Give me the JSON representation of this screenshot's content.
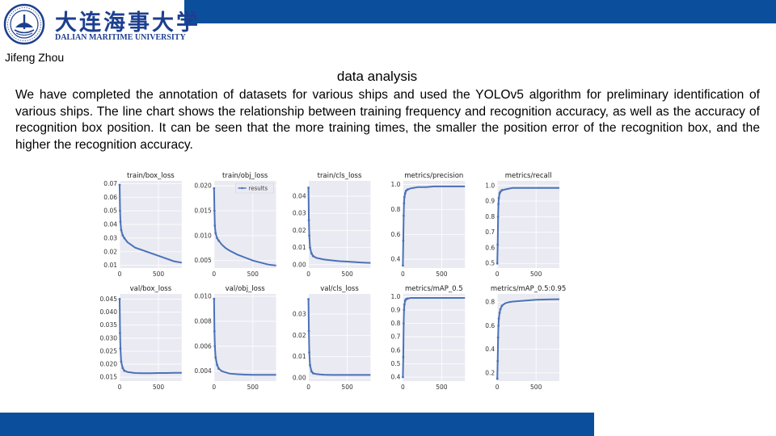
{
  "header": {
    "logo_cn": "大连海事大学",
    "logo_en": "DALIAN MARITIME UNIVERSITY"
  },
  "author": "Jifeng Zhou",
  "title": "data analysis",
  "body_text": "We have completed the annotation of datasets for various ships and used the YOLOv5 algorithm for preliminary identification of various ships. The line chart shows the relationship between training frequency and recognition accuracy, as well as the accuracy of recognition box position. It can be seen that the more training times, the smaller the position error of the recognition box, and the higher the recognition accuracy.",
  "colors": {
    "bar": "#0b4f9c",
    "logo": "#1d3f8f",
    "series": "#4a72b8",
    "panel_bg": "#eaeaf2"
  },
  "chart_data": [
    {
      "type": "line",
      "title": "train/box_loss",
      "legend": "",
      "xlim": [
        0,
        800
      ],
      "xticks": [
        0,
        500
      ],
      "ylim": [
        0.008,
        0.072
      ],
      "yticks": [
        0.01,
        0.02,
        0.03,
        0.04,
        0.05,
        0.06,
        0.07
      ],
      "ytick_labels": [
        "0.01",
        "0.02",
        "0.03",
        "0.04",
        "0.05",
        "0.06",
        "0.07"
      ],
      "x": [
        0,
        5,
        10,
        20,
        40,
        60,
        100,
        150,
        200,
        300,
        400,
        500,
        600,
        700,
        800
      ],
      "y": [
        0.069,
        0.05,
        0.042,
        0.036,
        0.032,
        0.03,
        0.027,
        0.025,
        0.023,
        0.021,
        0.019,
        0.017,
        0.015,
        0.013,
        0.012
      ]
    },
    {
      "type": "line",
      "title": "train/obj_loss",
      "legend": "results",
      "xlim": [
        0,
        800
      ],
      "xticks": [
        0,
        500
      ],
      "ylim": [
        0.0035,
        0.021
      ],
      "yticks": [
        0.005,
        0.01,
        0.015,
        0.02
      ],
      "ytick_labels": [
        "0.005",
        "0.010",
        "0.015",
        "0.020"
      ],
      "x": [
        0,
        5,
        10,
        20,
        40,
        60,
        100,
        150,
        200,
        300,
        400,
        500,
        600,
        700,
        800
      ],
      "y": [
        0.0195,
        0.015,
        0.012,
        0.0105,
        0.0095,
        0.009,
        0.0082,
        0.0075,
        0.007,
        0.0062,
        0.0056,
        0.005,
        0.0046,
        0.0042,
        0.004
      ]
    },
    {
      "type": "line",
      "title": "train/cls_loss",
      "legend": "",
      "xlim": [
        0,
        800
      ],
      "xticks": [
        0,
        500
      ],
      "ylim": [
        -0.002,
        0.049
      ],
      "yticks": [
        0.0,
        0.01,
        0.02,
        0.03,
        0.04
      ],
      "ytick_labels": [
        "0.00",
        "0.01",
        "0.02",
        "0.03",
        "0.04"
      ],
      "x": [
        0,
        5,
        10,
        20,
        40,
        60,
        100,
        150,
        200,
        300,
        400,
        500,
        600,
        700,
        800
      ],
      "y": [
        0.045,
        0.026,
        0.017,
        0.01,
        0.0065,
        0.005,
        0.004,
        0.0035,
        0.003,
        0.0025,
        0.002,
        0.0018,
        0.0015,
        0.0012,
        0.001
      ]
    },
    {
      "type": "line",
      "title": "metrics/precision",
      "legend": "",
      "xlim": [
        0,
        800
      ],
      "xticks": [
        0,
        500
      ],
      "ylim": [
        0.33,
        1.03
      ],
      "yticks": [
        0.4,
        0.6,
        0.8,
        1.0
      ],
      "ytick_labels": [
        "0.4",
        "0.6",
        "0.8",
        "1.0"
      ],
      "x": [
        0,
        5,
        10,
        15,
        20,
        30,
        40,
        60,
        100,
        150,
        200,
        300,
        400,
        500,
        600,
        700,
        800
      ],
      "y": [
        0.35,
        0.55,
        0.75,
        0.85,
        0.9,
        0.93,
        0.95,
        0.96,
        0.97,
        0.975,
        0.98,
        0.98,
        0.985,
        0.985,
        0.985,
        0.985,
        0.985
      ]
    },
    {
      "type": "line",
      "title": "metrics/recall",
      "legend": "",
      "xlim": [
        0,
        800
      ],
      "xticks": [
        0,
        500
      ],
      "ylim": [
        0.47,
        1.03
      ],
      "yticks": [
        0.5,
        0.6,
        0.7,
        0.8,
        0.9,
        1.0
      ],
      "ytick_labels": [
        "0.5",
        "0.6",
        "0.7",
        "0.8",
        "0.9",
        "1.0"
      ],
      "x": [
        0,
        5,
        10,
        15,
        20,
        30,
        40,
        60,
        100,
        150,
        200,
        300,
        400,
        500,
        600,
        700,
        800
      ],
      "y": [
        0.5,
        0.62,
        0.8,
        0.88,
        0.92,
        0.95,
        0.96,
        0.97,
        0.975,
        0.98,
        0.985,
        0.985,
        0.985,
        0.985,
        0.985,
        0.985,
        0.985
      ]
    },
    {
      "type": "line",
      "title": "val/box_loss",
      "legend": "",
      "xlim": [
        0,
        800
      ],
      "xticks": [
        0,
        500
      ],
      "ylim": [
        0.0135,
        0.047
      ],
      "yticks": [
        0.015,
        0.02,
        0.025,
        0.03,
        0.035,
        0.04,
        0.045
      ],
      "ytick_labels": [
        "0.015",
        "0.020",
        "0.025",
        "0.030",
        "0.035",
        "0.040",
        "0.045"
      ],
      "x": [
        0,
        5,
        10,
        20,
        40,
        60,
        100,
        150,
        200,
        300,
        400,
        500,
        600,
        700,
        800
      ],
      "y": [
        0.045,
        0.032,
        0.026,
        0.021,
        0.0185,
        0.0175,
        0.017,
        0.0168,
        0.0166,
        0.0165,
        0.0165,
        0.0166,
        0.0166,
        0.0167,
        0.0167
      ]
    },
    {
      "type": "line",
      "title": "val/obj_loss",
      "legend": "",
      "xlim": [
        0,
        800
      ],
      "xticks": [
        0,
        500
      ],
      "ylim": [
        0.0032,
        0.0102
      ],
      "yticks": [
        0.004,
        0.006,
        0.008,
        0.01
      ],
      "ytick_labels": [
        "0.004",
        "0.006",
        "0.008",
        "0.010"
      ],
      "x": [
        0,
        5,
        10,
        20,
        40,
        60,
        100,
        150,
        200,
        300,
        400,
        500,
        600,
        700,
        800
      ],
      "y": [
        0.0098,
        0.0072,
        0.006,
        0.0051,
        0.0045,
        0.0042,
        0.004,
        0.0039,
        0.0038,
        0.00375,
        0.00372,
        0.0037,
        0.0037,
        0.0037,
        0.0037
      ]
    },
    {
      "type": "line",
      "title": "val/cls_loss",
      "legend": "",
      "xlim": [
        0,
        800
      ],
      "xticks": [
        0,
        500
      ],
      "ylim": [
        -0.0015,
        0.0395
      ],
      "yticks": [
        0.0,
        0.01,
        0.02,
        0.03
      ],
      "ytick_labels": [
        "0.00",
        "0.01",
        "0.02",
        "0.03"
      ],
      "x": [
        0,
        5,
        10,
        20,
        40,
        60,
        100,
        150,
        200,
        300,
        400,
        500,
        600,
        700,
        800
      ],
      "y": [
        0.037,
        0.022,
        0.012,
        0.006,
        0.003,
        0.0022,
        0.0018,
        0.0016,
        0.0015,
        0.0014,
        0.0014,
        0.0014,
        0.0014,
        0.0014,
        0.0014
      ]
    },
    {
      "type": "line",
      "title": "metrics/mAP_0.5",
      "legend": "",
      "xlim": [
        0,
        800
      ],
      "xticks": [
        0,
        500
      ],
      "ylim": [
        0.37,
        1.02
      ],
      "yticks": [
        0.4,
        0.5,
        0.6,
        0.7,
        0.8,
        0.9,
        1.0
      ],
      "ytick_labels": [
        "0.4",
        "0.5",
        "0.6",
        "0.7",
        "0.8",
        "0.9",
        "1.0"
      ],
      "x": [
        0,
        5,
        10,
        15,
        20,
        30,
        40,
        60,
        100,
        150,
        200,
        300,
        400,
        500,
        600,
        700,
        800
      ],
      "y": [
        0.4,
        0.55,
        0.8,
        0.9,
        0.94,
        0.97,
        0.98,
        0.985,
        0.99,
        0.99,
        0.99,
        0.99,
        0.99,
        0.99,
        0.99,
        0.99,
        0.99
      ]
    },
    {
      "type": "line",
      "title": "metrics/mAP_0.5:0.95",
      "legend": "",
      "xlim": [
        0,
        800
      ],
      "xticks": [
        0,
        500
      ],
      "ylim": [
        0.13,
        0.87
      ],
      "yticks": [
        0.2,
        0.4,
        0.6,
        0.8
      ],
      "ytick_labels": [
        "0.2",
        "0.4",
        "0.6",
        "0.8"
      ],
      "x": [
        0,
        5,
        10,
        15,
        20,
        30,
        40,
        60,
        100,
        150,
        200,
        300,
        400,
        500,
        600,
        700,
        800
      ],
      "y": [
        0.15,
        0.3,
        0.5,
        0.6,
        0.66,
        0.71,
        0.74,
        0.77,
        0.79,
        0.8,
        0.805,
        0.81,
        0.815,
        0.82,
        0.822,
        0.824,
        0.825
      ]
    }
  ]
}
